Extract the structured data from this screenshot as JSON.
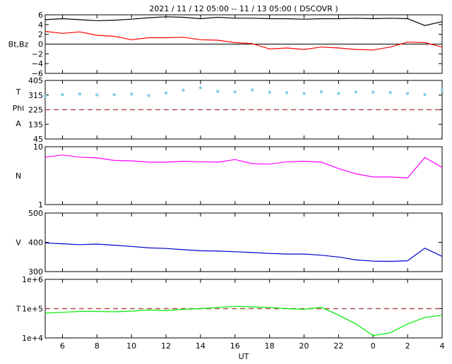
{
  "title": "2021 / 11 / 12   05:00 -- 11 / 13   05:00 ( DSCOVR )",
  "xlabel": "UT",
  "x_ticks": [
    "6",
    "8",
    "10",
    "12",
    "14",
    "16",
    "18",
    "20",
    "22",
    "0",
    "2",
    "4"
  ],
  "chart_data": [
    {
      "type": "line",
      "panel": "Bt,Bz",
      "ylabel": "Bt,Bz",
      "ylim": [
        -6,
        6
      ],
      "yticks": [
        "6",
        "4",
        "2",
        "0",
        "−2",
        "−4",
        "−6"
      ],
      "zero_line": true,
      "x_hours_ut": [
        5,
        6,
        7,
        8,
        9,
        10,
        11,
        12,
        13,
        14,
        15,
        16,
        17,
        18,
        19,
        20,
        21,
        22,
        23,
        24,
        25,
        26,
        27,
        28
      ],
      "series": [
        {
          "color": "#000000",
          "values": [
            5.0,
            5.2,
            5.0,
            4.8,
            4.9,
            5.1,
            5.4,
            5.6,
            5.5,
            5.2,
            5.5,
            5.3,
            5.3,
            5.2,
            5.2,
            5.1,
            5.2,
            5.2,
            5.3,
            5.2,
            5.3,
            5.2,
            3.8,
            4.6
          ]
        },
        {
          "color": "#ff0000",
          "values": [
            2.6,
            2.2,
            2.5,
            1.8,
            1.6,
            0.9,
            1.3,
            1.3,
            1.4,
            0.9,
            0.8,
            0.3,
            0.1,
            -1.0,
            -0.8,
            -1.1,
            -0.6,
            -0.8,
            -1.1,
            -1.2,
            -0.6,
            0.4,
            0.3,
            -0.6
          ]
        }
      ]
    },
    {
      "type": "scatter",
      "panel": "Phi",
      "ylabel_lines": [
        "T",
        "Phi",
        "A"
      ],
      "ylim": [
        45,
        405
      ],
      "yticks": [
        "405",
        "315",
        "225",
        "135",
        "45"
      ],
      "reference_line": 225,
      "x_hours_ut": [
        5,
        6,
        7,
        8,
        9,
        10,
        11,
        12,
        13,
        14,
        15,
        16,
        17,
        18,
        19,
        20,
        21,
        22,
        23,
        24,
        25,
        26,
        27,
        28
      ],
      "series": [
        {
          "color": "#87ceeb",
          "values": [
            308,
            318,
            322,
            316,
            318,
            321,
            312,
            328,
            345,
            360,
            338,
            335,
            346,
            332,
            330,
            325,
            335,
            325,
            333,
            332,
            330,
            325,
            318,
            345
          ]
        }
      ]
    },
    {
      "type": "line",
      "panel": "N",
      "ylabel": "N",
      "ylim": [
        1,
        10
      ],
      "log_scale": true,
      "yticks": [
        "10",
        "1"
      ],
      "x_hours_ut": [
        5,
        6,
        7,
        8,
        9,
        10,
        11,
        12,
        13,
        14,
        15,
        16,
        17,
        18,
        19,
        20,
        21,
        22,
        23,
        24,
        25,
        26,
        27,
        28
      ],
      "series": [
        {
          "color": "#ff00ff",
          "values": [
            6.6,
            7.2,
            6.6,
            6.4,
            5.8,
            5.7,
            5.4,
            5.4,
            5.6,
            5.5,
            5.4,
            6.0,
            5.1,
            5.0,
            5.5,
            5.6,
            5.4,
            4.2,
            3.4,
            3.0,
            3.0,
            2.9,
            6.5,
            4.4
          ]
        }
      ]
    },
    {
      "type": "line",
      "panel": "V",
      "ylabel": "V",
      "ylim": [
        300,
        500
      ],
      "yticks": [
        "500",
        "400",
        "300"
      ],
      "x_hours_ut": [
        5,
        6,
        7,
        8,
        9,
        10,
        11,
        12,
        13,
        14,
        15,
        16,
        17,
        18,
        19,
        20,
        21,
        22,
        23,
        24,
        25,
        26,
        27,
        28
      ],
      "series": [
        {
          "color": "#0000cd",
          "values": [
            398,
            395,
            392,
            394,
            390,
            386,
            381,
            379,
            375,
            371,
            370,
            368,
            365,
            362,
            360,
            360,
            356,
            350,
            340,
            336,
            335,
            337,
            380,
            352
          ]
        }
      ]
    },
    {
      "type": "line",
      "panel": "T",
      "ylabel": "T",
      "ylim": [
        10000,
        1000000
      ],
      "log_scale": true,
      "yticks": [
        "1e+6",
        "1e+5",
        "1e+4"
      ],
      "reference_line": 100000,
      "x_hours_ut": [
        5,
        6,
        7,
        8,
        9,
        10,
        11,
        12,
        13,
        14,
        15,
        16,
        17,
        18,
        19,
        20,
        21,
        22,
        23,
        24,
        25,
        26,
        27,
        28
      ],
      "series": [
        {
          "color": "#00ee00",
          "values": [
            70000,
            75000,
            80000,
            80000,
            78000,
            82000,
            90000,
            85000,
            95000,
            100000,
            110000,
            120000,
            115000,
            110000,
            100000,
            95000,
            110000,
            60000,
            30000,
            12000,
            15000,
            30000,
            50000,
            60000
          ]
        }
      ]
    }
  ]
}
